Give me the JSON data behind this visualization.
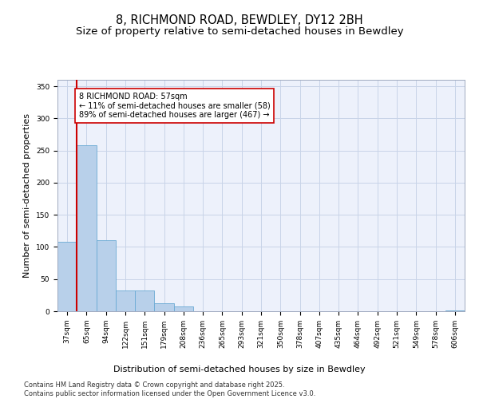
{
  "title_line1": "8, RICHMOND ROAD, BEWDLEY, DY12 2BH",
  "title_line2": "Size of property relative to semi-detached houses in Bewdley",
  "xlabel": "Distribution of semi-detached houses by size in Bewdley",
  "ylabel": "Number of semi-detached properties",
  "footer": "Contains HM Land Registry data © Crown copyright and database right 2025.\nContains public sector information licensed under the Open Government Licence v3.0.",
  "bins": [
    "37sqm",
    "65sqm",
    "94sqm",
    "122sqm",
    "151sqm",
    "179sqm",
    "208sqm",
    "236sqm",
    "265sqm",
    "293sqm",
    "321sqm",
    "350sqm",
    "378sqm",
    "407sqm",
    "435sqm",
    "464sqm",
    "492sqm",
    "521sqm",
    "549sqm",
    "578sqm",
    "606sqm"
  ],
  "bar_heights": [
    108,
    258,
    110,
    32,
    32,
    13,
    8,
    0,
    0,
    0,
    0,
    0,
    0,
    0,
    0,
    0,
    0,
    0,
    0,
    0,
    1
  ],
  "bar_color": "#b8d0ea",
  "bar_edge_color": "#6aaad4",
  "grid_color": "#c8d4e8",
  "annotation_text": "8 RICHMOND ROAD: 57sqm\n← 11% of semi-detached houses are smaller (58)\n89% of semi-detached houses are larger (467) →",
  "vline_color": "#cc0000",
  "vline_x_index": 0.5,
  "ylim": [
    0,
    360
  ],
  "yticks": [
    0,
    50,
    100,
    150,
    200,
    250,
    300,
    350
  ],
  "background_color": "#edf1fb",
  "title_fontsize": 10.5,
  "subtitle_fontsize": 9.5,
  "axis_label_fontsize": 8,
  "tick_fontsize": 6.5,
  "annotation_fontsize": 7,
  "footer_fontsize": 6
}
